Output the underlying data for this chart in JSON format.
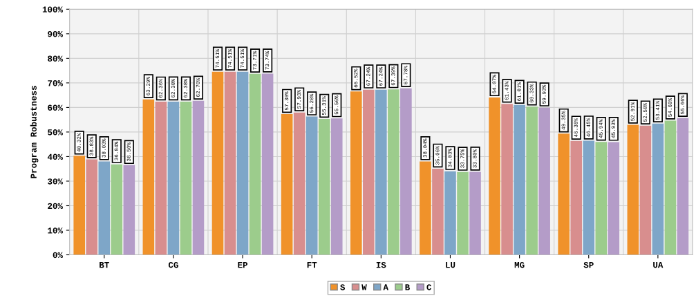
{
  "chart_data": {
    "type": "bar",
    "ylabel": "Program Robustness",
    "categories": [
      "BT",
      "CG",
      "EP",
      "FT",
      "IS",
      "LU",
      "MG",
      "SP",
      "UA"
    ],
    "series": [
      {
        "name": "S",
        "color": "#f0922a",
        "values": [
          40.32,
          63.29,
          74.51,
          57.3,
          66.52,
          38.04,
          64.07,
          49.35,
          52.91
        ],
        "value_labels": [
          "40.32%",
          "63.29%",
          "74.51%",
          "57.30%",
          "66.52%",
          "38.04%",
          "64.07%",
          "49.35%",
          "52.91%"
        ]
      },
      {
        "name": "W",
        "color": "#d88e8e",
        "values": [
          38.83,
          62.36,
          74.51,
          57.93,
          67.24,
          35.06,
          61.43,
          46.38,
          52.58
        ],
        "value_labels": [
          "38.83%",
          "62.36%",
          "74.51%",
          "57.93%",
          "67.24%",
          "35.06%",
          "61.43%",
          "46.38%",
          "52.58%"
        ]
      },
      {
        "name": "A",
        "color": "#7ea6c8",
        "values": [
          38.03,
          62.38,
          74.51,
          56.28,
          67.24,
          34.03,
          61.01,
          46.45,
          53.41
        ],
        "value_labels": [
          "38.03%",
          "62.38%",
          "74.51%",
          "56.28%",
          "67.24%",
          "34.03%",
          "61.01%",
          "46.45%",
          "53.41%"
        ]
      },
      {
        "name": "B",
        "color": "#9ccc8c",
        "values": [
          36.84,
          62.38,
          73.71,
          55.31,
          67.39,
          33.75,
          60.33,
          45.94,
          54.6
        ],
        "value_labels": [
          "36.84%",
          "62.38%",
          "73.71%",
          "55.31%",
          "67.39%",
          "33.75%",
          "60.33%",
          "45.94%",
          "54.60%"
        ]
      },
      {
        "name": "C",
        "color": "#b49cc8",
        "values": [
          36.5,
          62.7,
          73.74,
          55.56,
          67.78,
          33.8,
          59.93,
          45.93,
          55.66
        ],
        "value_labels": [
          "36.50%",
          "62.70%",
          "73.74%",
          "55.56%",
          "67.78%",
          "33.80%",
          "59.93%",
          "45.93%",
          "55.66%"
        ]
      }
    ],
    "ylim": [
      0,
      100
    ],
    "yticks": [
      {
        "value": 0,
        "label": "0%"
      },
      {
        "value": 10,
        "label": "10%"
      },
      {
        "value": 20,
        "label": "20%"
      },
      {
        "value": 30,
        "label": "30%"
      },
      {
        "value": 40,
        "label": "40%"
      },
      {
        "value": 50,
        "label": "50%"
      },
      {
        "value": 60,
        "label": "60%"
      },
      {
        "value": 70,
        "label": "70%"
      },
      {
        "value": 80,
        "label": "80%"
      },
      {
        "value": 90,
        "label": "90%"
      },
      {
        "value": 100,
        "label": "100%"
      }
    ],
    "grid": "y",
    "legend": "bottom"
  }
}
